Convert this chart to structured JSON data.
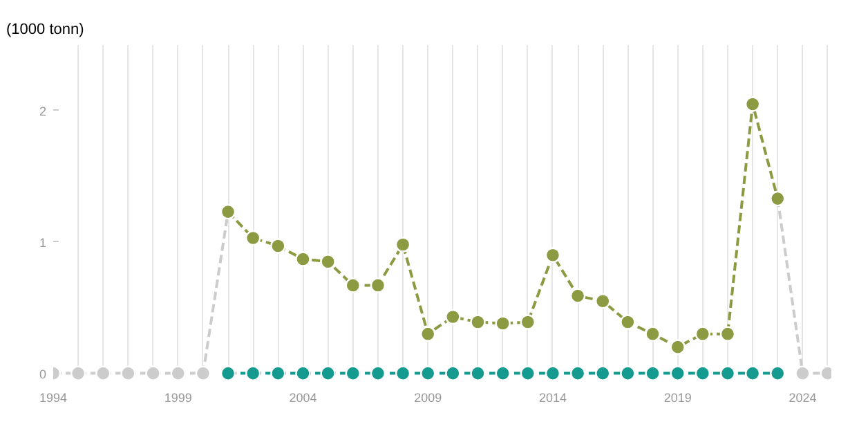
{
  "chart_data": {
    "type": "line",
    "ylabel": "(1000 tonn)",
    "x": [
      1994,
      1995,
      1996,
      1997,
      1998,
      1999,
      2000,
      2001,
      2002,
      2003,
      2004,
      2005,
      2006,
      2007,
      2008,
      2009,
      2010,
      2011,
      2012,
      2013,
      2014,
      2015,
      2016,
      2017,
      2018,
      2019,
      2020,
      2021,
      2022,
      2023,
      2024,
      2025
    ],
    "series": [
      {
        "color": "#cccccc",
        "line_style": "dashed",
        "values": [
          0,
          0,
          0,
          0,
          0,
          0,
          0,
          1.23,
          null,
          null,
          null,
          null,
          null,
          null,
          null,
          null,
          null,
          null,
          null,
          null,
          null,
          null,
          null,
          null,
          null,
          null,
          null,
          null,
          null,
          1.33,
          0,
          0
        ]
      },
      {
        "color": "#149a8f",
        "line_style": "dashed",
        "values": [
          null,
          null,
          null,
          null,
          null,
          null,
          null,
          0,
          0,
          0,
          0,
          0,
          0,
          0,
          0,
          0,
          0,
          0,
          0,
          0,
          0,
          0,
          0,
          0,
          0,
          0,
          0,
          0,
          0,
          0,
          null,
          null
        ]
      },
      {
        "color": "#8c9a42",
        "line_style": "dashed",
        "values": [
          null,
          null,
          null,
          null,
          null,
          null,
          null,
          1.23,
          1.03,
          0.97,
          0.87,
          0.85,
          0.67,
          0.67,
          0.98,
          0.3,
          0.43,
          0.39,
          0.38,
          0.39,
          0.9,
          0.59,
          0.55,
          0.39,
          0.3,
          0.2,
          0.3,
          0.3,
          2.05,
          1.33,
          null,
          null
        ]
      }
    ],
    "marker": "circle",
    "xlim": [
      1994,
      2025
    ],
    "xticks": [
      {
        "value": 1994,
        "label": "1994"
      },
      {
        "value": 1995,
        "label": null
      },
      {
        "value": 1996,
        "label": null
      },
      {
        "value": 1997,
        "label": null
      },
      {
        "value": 1998,
        "label": null
      },
      {
        "value": 1999,
        "label": "1999"
      },
      {
        "value": 2000,
        "label": null
      },
      {
        "value": 2001,
        "label": null
      },
      {
        "value": 2002,
        "label": null
      },
      {
        "value": 2003,
        "label": null
      },
      {
        "value": 2004,
        "label": "2004"
      },
      {
        "value": 2005,
        "label": null
      },
      {
        "value": 2006,
        "label": null
      },
      {
        "value": 2007,
        "label": null
      },
      {
        "value": 2008,
        "label": null
      },
      {
        "value": 2009,
        "label": "2009"
      },
      {
        "value": 2010,
        "label": null
      },
      {
        "value": 2011,
        "label": null
      },
      {
        "value": 2012,
        "label": null
      },
      {
        "value": 2013,
        "label": null
      },
      {
        "value": 2014,
        "label": "2014"
      },
      {
        "value": 2015,
        "label": null
      },
      {
        "value": 2016,
        "label": null
      },
      {
        "value": 2017,
        "label": null
      },
      {
        "value": 2018,
        "label": null
      },
      {
        "value": 2019,
        "label": "2019"
      },
      {
        "value": 2020,
        "label": null
      },
      {
        "value": 2021,
        "label": null
      },
      {
        "value": 2022,
        "label": null
      },
      {
        "value": 2023,
        "label": null
      },
      {
        "value": 2024,
        "label": "2024"
      },
      {
        "value": 2025,
        "label": null
      }
    ],
    "ylim": [
      0,
      2.5
    ],
    "yticks": [
      0,
      1,
      2
    ],
    "grid": "x"
  }
}
